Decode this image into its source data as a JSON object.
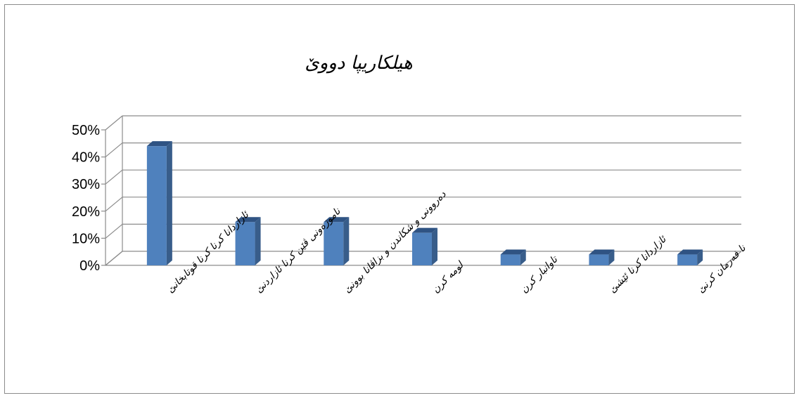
{
  "chart_data": {
    "type": "bar",
    "title": "هیلكاریپا دووێ",
    "categories": [
      "ئازاردانا كرنا كرنا قوتابخانێ",
      "ناموزەونی ڤێن كرنا ئازاردنێ",
      "دەروونی و شكاندن و بزاڤانا بوونێ",
      "لومە كرن",
      "تاوانبار كرن",
      "ئازاردانا كرنا ئێشێ",
      "نا فەرمان كرنێ"
    ],
    "values": [
      44,
      16,
      16,
      12,
      4,
      4,
      4
    ],
    "ylim": [
      0,
      50
    ],
    "yticks": [
      "0%",
      "10%",
      "20%",
      "30%",
      "40%",
      "50%"
    ],
    "bar_color": "#4f81bd",
    "bar_side_color": "#385d8a",
    "bar_top_color": "#2f5383",
    "grid": true,
    "legend": "none"
  }
}
